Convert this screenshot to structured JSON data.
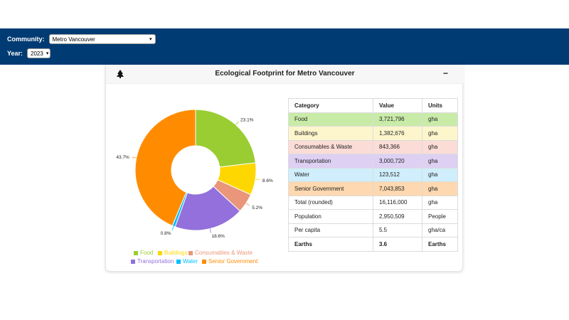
{
  "header": {
    "community_label": "Community:",
    "community_value": "Metro Vancouver",
    "year_label": "Year:",
    "year_value": "2023"
  },
  "card": {
    "title": "Ecological Footprint for Metro Vancouver",
    "collapse_symbol": "−"
  },
  "table": {
    "headers": [
      "Category",
      "Value",
      "Units"
    ],
    "rows": [
      {
        "category": "Food",
        "value": "3,721,796",
        "units": "gha",
        "color": "#c9eba8"
      },
      {
        "category": "Buildings",
        "value": "1,382,676",
        "units": "gha",
        "color": "#fdf6cc"
      },
      {
        "category": "Consumables & Waste",
        "value": "843,366",
        "units": "gha",
        "color": "#fbdcd7"
      },
      {
        "category": "Transportation",
        "value": "3,000,720",
        "units": "gha",
        "color": "#ddd0f3"
      },
      {
        "category": "Water",
        "value": "123,512",
        "units": "gha",
        "color": "#d0eefb"
      },
      {
        "category": "Senior Government",
        "value": "7,043,853",
        "units": "gha",
        "color": "#fdd8b0"
      },
      {
        "category": "Total (rounded)",
        "value": "16,116,000",
        "units": "gha",
        "color": "#ffffff"
      },
      {
        "category": "Population",
        "value": "2,950,509",
        "units": "People",
        "color": "#ffffff"
      },
      {
        "category": "Per capita",
        "value": "5.5",
        "units": "gha/ca",
        "color": "#ffffff"
      },
      {
        "category": "Earths",
        "value": "3.6",
        "units": "Earths",
        "color": "#ffffff"
      }
    ]
  },
  "chart_data": {
    "type": "pie",
    "donut": true,
    "legend_position": "bottom",
    "categories": [
      "Food",
      "Buildings",
      "Consumables & Waste",
      "Transportation",
      "Water",
      "Senior Government"
    ],
    "values": [
      23.1,
      8.6,
      5.2,
      18.6,
      0.8,
      43.7
    ],
    "labels": [
      "23.1%",
      "8.6%",
      "5.2%",
      "18.6%",
      "0.8%",
      "43.7%"
    ],
    "colors": [
      "#9acd32",
      "#ffd700",
      "#e9967a",
      "#9370db",
      "#00bfff",
      "#ff8c00"
    ]
  }
}
